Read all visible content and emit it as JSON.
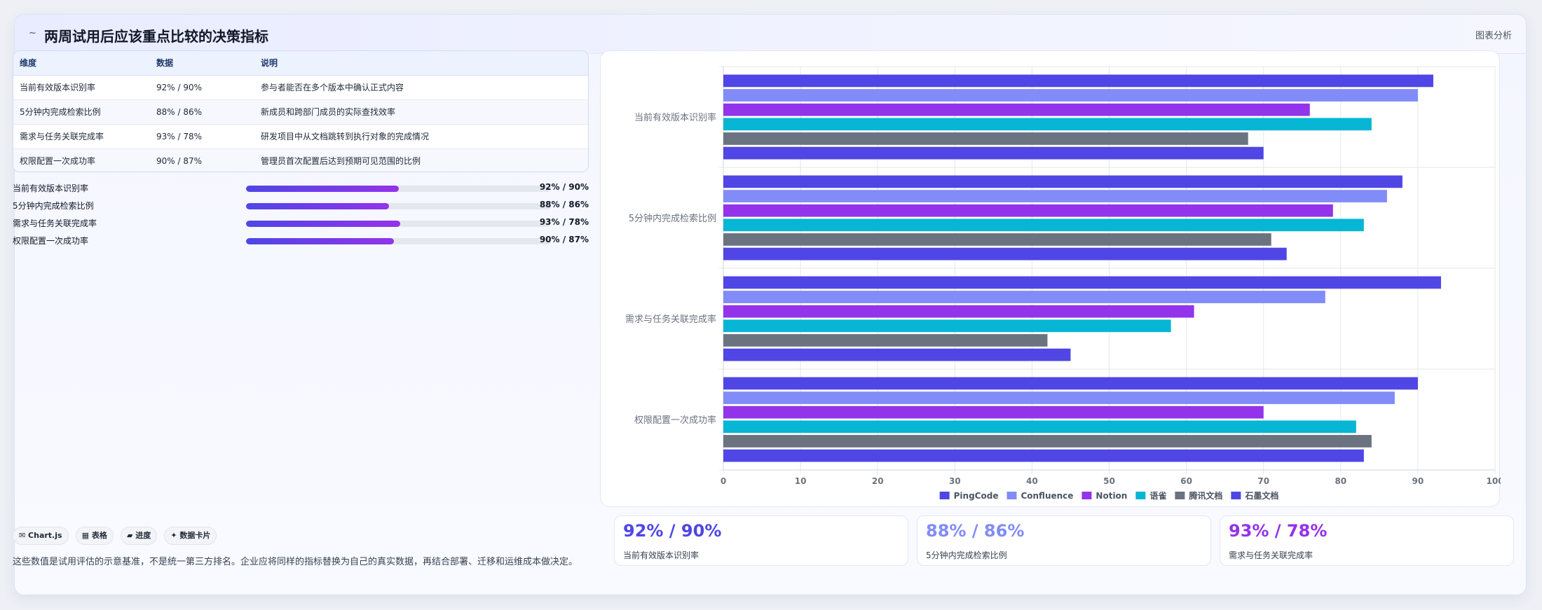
{
  "header": {
    "icon": "~",
    "title": "两周试用后应该重点比较的决策指标",
    "link": "图表分析"
  },
  "table": {
    "headers": [
      "维度",
      "数据",
      "说明"
    ],
    "rows": [
      [
        "当前有效版本识别率",
        "92% / 90%",
        "参与者能否在多个版本中确认正式内容"
      ],
      [
        "5分钟内完成检索比例",
        "88% / 86%",
        "新成员和跨部门成员的实际查找效率"
      ],
      [
        "需求与任务关联完成率",
        "93% / 78%",
        "研发项目中从文档跳转到执行对象的完成情况"
      ],
      [
        "权限配置一次成功率",
        "90% / 87%",
        "管理员首次配置后达到预期可见范围的比例"
      ]
    ]
  },
  "progress": [
    {
      "label": "当前有效版本识别率",
      "value": "92% / 90%",
      "fill": 0.5
    },
    {
      "label": "5分钟内完成检索比例",
      "value": "88% / 86%",
      "fill": 0.47
    },
    {
      "label": "需求与任务关联完成率",
      "value": "93% / 78%",
      "fill": 0.505
    },
    {
      "label": "权限配置一次成功率",
      "value": "90% / 87%",
      "fill": 0.485
    }
  ],
  "tags": [
    "✉ Chart.js",
    "▦ 表格",
    "▰ 进度",
    "✦ 数据卡片"
  ],
  "note": "这些数值是试用评估的示意基准，不是统一第三方排名。企业应将同样的指标替换为自己的真实数据，再结合部署、迁移和运维成本做决定。",
  "stats": [
    {
      "value": "92% / 90%",
      "label": "当前有效版本识别率",
      "color": "#4f46e5"
    },
    {
      "value": "88% / 86%",
      "label": "5分钟内完成检索比例",
      "color": "#818cf8"
    },
    {
      "value": "93% / 78%",
      "label": "需求与任务关联完成率",
      "color": "#9333ea"
    }
  ],
  "chart_data": {
    "type": "bar",
    "orientation": "horizontal",
    "categories": [
      "当前有效版本识别率",
      "5分钟内完成检索比例",
      "需求与任务关联完成率",
      "权限配置一次成功率"
    ],
    "series": [
      {
        "name": "PingCode",
        "color": "#4f46e5",
        "values": [
          92,
          88,
          93,
          90
        ]
      },
      {
        "name": "Confluence",
        "color": "#818cf8",
        "values": [
          90,
          86,
          78,
          87
        ]
      },
      {
        "name": "Notion",
        "color": "#9333ea",
        "values": [
          76,
          79,
          61,
          70
        ]
      },
      {
        "name": "语雀",
        "color": "#06b6d4",
        "values": [
          84,
          83,
          58,
          82
        ]
      },
      {
        "name": "腾讯文档",
        "color": "#6b7280",
        "values": [
          68,
          71,
          42,
          84
        ]
      },
      {
        "name": "石墨文档",
        "color": "#4f46e5",
        "values": [
          70,
          73,
          45,
          83
        ]
      }
    ],
    "xlim": [
      0,
      100
    ],
    "xticks": [
      0,
      10,
      20,
      30,
      40,
      50,
      60,
      70,
      80,
      90,
      100
    ],
    "grid": true,
    "legend": "bottom"
  }
}
